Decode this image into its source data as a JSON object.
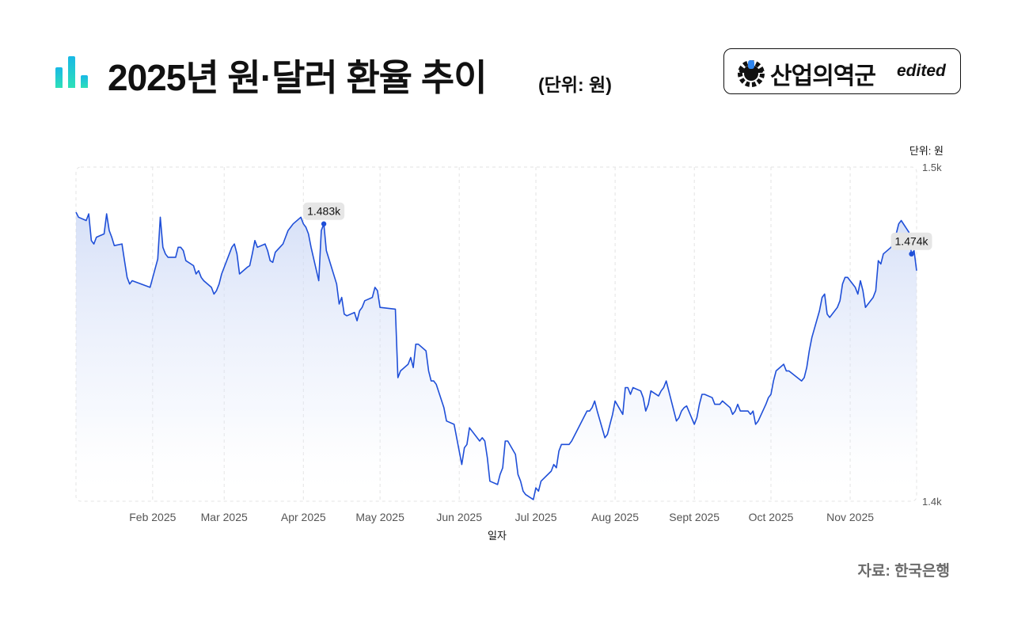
{
  "header": {
    "title": "2025년 원·달러 환율 추이",
    "subtitle": "(단위: 원)",
    "icon": "bar-chart-icon"
  },
  "logo": {
    "name": "산업의역군",
    "suffix": "edited",
    "icon": "hard-hat-gear-icon"
  },
  "source": "자료: 한국은행",
  "colors": {
    "line": "#1f4fd8",
    "area_top": "#c9d6f5",
    "grid": "#e3e3e3",
    "icon_teal": "#2ee0b8",
    "icon_blue": "#18b8e6"
  },
  "chart_data": {
    "type": "area",
    "xlabel": "일자",
    "ylabel": "단위: 원",
    "ylim": [
      1400,
      1500
    ],
    "y_ticks": [
      "1.4k",
      "1.5k"
    ],
    "x_ticks": [
      "Feb 2025",
      "Mar 2025",
      "Apr 2025",
      "May 2025",
      "Jun 2025",
      "Jul 2025",
      "Aug 2025",
      "Sept 2025",
      "Oct 2025",
      "Nov 2025"
    ],
    "x_tick_dates": [
      "2025-02-01",
      "2025-03-01",
      "2025-04-01",
      "2025-05-01",
      "2025-06-01",
      "2025-07-01",
      "2025-08-01",
      "2025-09-01",
      "2025-10-01",
      "2025-11-01"
    ],
    "x_range": [
      "2025-01-02",
      "2025-11-27"
    ],
    "grid": true,
    "annotations": [
      {
        "date": "2025-04-09",
        "value": 1483,
        "label": "1.483k"
      },
      {
        "date": "2025-11-25",
        "value": 1474,
        "label": "1.474k"
      }
    ],
    "series": [
      {
        "points": [
          [
            "2025-01-02",
            1486.5
          ],
          [
            "2025-01-03",
            1485
          ],
          [
            "2025-01-06",
            1484
          ],
          [
            "2025-01-07",
            1486
          ],
          [
            "2025-01-08",
            1478
          ],
          [
            "2025-01-09",
            1477
          ],
          [
            "2025-01-10",
            1479
          ],
          [
            "2025-01-13",
            1480
          ],
          [
            "2025-01-14",
            1486
          ],
          [
            "2025-01-15",
            1481
          ],
          [
            "2025-01-16",
            1479
          ],
          [
            "2025-01-17",
            1476.5
          ],
          [
            "2025-01-20",
            1477
          ],
          [
            "2025-01-21",
            1472
          ],
          [
            "2025-01-22",
            1467
          ],
          [
            "2025-01-23",
            1465
          ],
          [
            "2025-01-24",
            1466
          ],
          [
            "2025-01-31",
            1464
          ],
          [
            "2025-02-03",
            1472.5
          ],
          [
            "2025-02-04",
            1485
          ],
          [
            "2025-02-05",
            1476
          ],
          [
            "2025-02-06",
            1474
          ],
          [
            "2025-02-07",
            1473
          ],
          [
            "2025-02-10",
            1473
          ],
          [
            "2025-02-11",
            1476
          ],
          [
            "2025-02-12",
            1476
          ],
          [
            "2025-02-13",
            1475
          ],
          [
            "2025-02-14",
            1472
          ],
          [
            "2025-02-17",
            1470.5
          ],
          [
            "2025-02-18",
            1468
          ],
          [
            "2025-02-19",
            1469
          ],
          [
            "2025-02-20",
            1467
          ],
          [
            "2025-02-21",
            1466
          ],
          [
            "2025-02-24",
            1464
          ],
          [
            "2025-02-25",
            1462
          ],
          [
            "2025-02-26",
            1463
          ],
          [
            "2025-02-27",
            1465
          ],
          [
            "2025-02-28",
            1468
          ],
          [
            "2025-03-04",
            1476
          ],
          [
            "2025-03-05",
            1477
          ],
          [
            "2025-03-06",
            1474
          ],
          [
            "2025-03-07",
            1468
          ],
          [
            "2025-03-10",
            1470
          ],
          [
            "2025-03-11",
            1470.5
          ],
          [
            "2025-03-12",
            1474
          ],
          [
            "2025-03-13",
            1478
          ],
          [
            "2025-03-14",
            1476
          ],
          [
            "2025-03-17",
            1477
          ],
          [
            "2025-03-18",
            1475
          ],
          [
            "2025-03-19",
            1472
          ],
          [
            "2025-03-20",
            1471.5
          ],
          [
            "2025-03-21",
            1474.5
          ],
          [
            "2025-03-24",
            1477
          ],
          [
            "2025-03-25",
            1479
          ],
          [
            "2025-03-26",
            1481
          ],
          [
            "2025-03-27",
            1482
          ],
          [
            "2025-03-28",
            1483
          ],
          [
            "2025-03-31",
            1485
          ],
          [
            "2025-04-01",
            1483
          ],
          [
            "2025-04-02",
            1482
          ],
          [
            "2025-04-03",
            1480
          ],
          [
            "2025-04-04",
            1476
          ],
          [
            "2025-04-07",
            1466
          ],
          [
            "2025-04-08",
            1481
          ],
          [
            "2025-04-09",
            1483
          ],
          [
            "2025-04-10",
            1475
          ],
          [
            "2025-04-11",
            1472.5
          ],
          [
            "2025-04-14",
            1465
          ],
          [
            "2025-04-15",
            1459
          ],
          [
            "2025-04-16",
            1461
          ],
          [
            "2025-04-17",
            1456
          ],
          [
            "2025-04-18",
            1455.5
          ],
          [
            "2025-04-21",
            1456.5
          ],
          [
            "2025-04-22",
            1454
          ],
          [
            "2025-04-23",
            1457
          ],
          [
            "2025-04-24",
            1458
          ],
          [
            "2025-04-25",
            1460
          ],
          [
            "2025-04-28",
            1461
          ],
          [
            "2025-04-29",
            1464
          ],
          [
            "2025-04-30",
            1463
          ],
          [
            "2025-05-01",
            1458
          ],
          [
            "2025-05-07",
            1457.5
          ],
          [
            "2025-05-08",
            1437
          ],
          [
            "2025-05-09",
            1439
          ],
          [
            "2025-05-12",
            1441
          ],
          [
            "2025-05-13",
            1443
          ],
          [
            "2025-05-14",
            1440
          ],
          [
            "2025-05-15",
            1447
          ],
          [
            "2025-05-16",
            1447
          ],
          [
            "2025-05-19",
            1445
          ],
          [
            "2025-05-20",
            1439
          ],
          [
            "2025-05-21",
            1436
          ],
          [
            "2025-05-22",
            1436
          ],
          [
            "2025-05-23",
            1435
          ],
          [
            "2025-05-26",
            1428
          ],
          [
            "2025-05-27",
            1424
          ],
          [
            "2025-05-30",
            1423
          ],
          [
            "2025-06-02",
            1411
          ],
          [
            "2025-06-03",
            1416
          ],
          [
            "2025-06-04",
            1417
          ],
          [
            "2025-06-05",
            1422
          ],
          [
            "2025-06-09",
            1418
          ],
          [
            "2025-06-10",
            1419
          ],
          [
            "2025-06-11",
            1418
          ],
          [
            "2025-06-12",
            1413
          ],
          [
            "2025-06-13",
            1406
          ],
          [
            "2025-06-16",
            1405
          ],
          [
            "2025-06-17",
            1408
          ],
          [
            "2025-06-18",
            1410
          ],
          [
            "2025-06-19",
            1418
          ],
          [
            "2025-06-20",
            1418
          ],
          [
            "2025-06-23",
            1414
          ],
          [
            "2025-06-24",
            1408
          ],
          [
            "2025-06-25",
            1406
          ],
          [
            "2025-06-26",
            1403
          ],
          [
            "2025-06-27",
            1402
          ],
          [
            "2025-06-30",
            1400.5
          ],
          [
            "2025-07-01",
            1404
          ],
          [
            "2025-07-02",
            1403
          ],
          [
            "2025-07-03",
            1406
          ],
          [
            "2025-07-07",
            1409
          ],
          [
            "2025-07-08",
            1411
          ],
          [
            "2025-07-09",
            1410
          ],
          [
            "2025-07-10",
            1415
          ],
          [
            "2025-07-11",
            1417
          ],
          [
            "2025-07-14",
            1417
          ],
          [
            "2025-07-15",
            1418
          ],
          [
            "2025-07-17",
            1421
          ],
          [
            "2025-07-21",
            1427
          ],
          [
            "2025-07-22",
            1427
          ],
          [
            "2025-07-23",
            1428
          ],
          [
            "2025-07-24",
            1430
          ],
          [
            "2025-07-25",
            1427
          ],
          [
            "2025-07-28",
            1419
          ],
          [
            "2025-07-29",
            1420
          ],
          [
            "2025-07-30",
            1423
          ],
          [
            "2025-07-31",
            1426
          ],
          [
            "2025-08-01",
            1430
          ],
          [
            "2025-08-04",
            1426
          ],
          [
            "2025-08-05",
            1434
          ],
          [
            "2025-08-06",
            1434
          ],
          [
            "2025-08-07",
            1432
          ],
          [
            "2025-08-08",
            1434
          ],
          [
            "2025-08-11",
            1433
          ],
          [
            "2025-08-12",
            1431
          ],
          [
            "2025-08-13",
            1427
          ],
          [
            "2025-08-14",
            1429
          ],
          [
            "2025-08-15",
            1433
          ],
          [
            "2025-08-18",
            1431.5
          ],
          [
            "2025-08-19",
            1433
          ],
          [
            "2025-08-20",
            1434
          ],
          [
            "2025-08-21",
            1436
          ],
          [
            "2025-08-22",
            1433
          ],
          [
            "2025-08-25",
            1424
          ],
          [
            "2025-08-26",
            1425
          ],
          [
            "2025-08-27",
            1427
          ],
          [
            "2025-08-28",
            1428
          ],
          [
            "2025-08-29",
            1428.5
          ],
          [
            "2025-09-01",
            1423
          ],
          [
            "2025-09-02",
            1425
          ],
          [
            "2025-09-03",
            1429
          ],
          [
            "2025-09-04",
            1432
          ],
          [
            "2025-09-05",
            1432
          ],
          [
            "2025-09-08",
            1431
          ],
          [
            "2025-09-09",
            1429
          ],
          [
            "2025-09-10",
            1429
          ],
          [
            "2025-09-11",
            1429
          ],
          [
            "2025-09-12",
            1430
          ],
          [
            "2025-09-15",
            1428
          ],
          [
            "2025-09-16",
            1426
          ],
          [
            "2025-09-17",
            1427
          ],
          [
            "2025-09-18",
            1429
          ],
          [
            "2025-09-19",
            1427
          ],
          [
            "2025-09-22",
            1427
          ],
          [
            "2025-09-23",
            1426
          ],
          [
            "2025-09-24",
            1427
          ],
          [
            "2025-09-25",
            1423
          ],
          [
            "2025-09-26",
            1424
          ],
          [
            "2025-09-29",
            1429
          ],
          [
            "2025-09-30",
            1431
          ],
          [
            "2025-10-01",
            1432
          ],
          [
            "2025-10-02",
            1436
          ],
          [
            "2025-10-03",
            1439
          ],
          [
            "2025-10-06",
            1441
          ],
          [
            "2025-10-07",
            1439
          ],
          [
            "2025-10-08",
            1439
          ],
          [
            "2025-10-13",
            1436
          ],
          [
            "2025-10-14",
            1437
          ],
          [
            "2025-10-15",
            1440
          ],
          [
            "2025-10-16",
            1445
          ],
          [
            "2025-10-17",
            1449
          ],
          [
            "2025-10-20",
            1457
          ],
          [
            "2025-10-21",
            1461
          ],
          [
            "2025-10-22",
            1462
          ],
          [
            "2025-10-23",
            1456
          ],
          [
            "2025-10-24",
            1455
          ],
          [
            "2025-10-27",
            1458
          ],
          [
            "2025-10-28",
            1460
          ],
          [
            "2025-10-29",
            1465
          ],
          [
            "2025-10-30",
            1467
          ],
          [
            "2025-10-31",
            1467
          ],
          [
            "2025-11-03",
            1464
          ],
          [
            "2025-11-04",
            1462
          ],
          [
            "2025-11-05",
            1466
          ],
          [
            "2025-11-06",
            1463
          ],
          [
            "2025-11-07",
            1458
          ],
          [
            "2025-11-10",
            1461
          ],
          [
            "2025-11-11",
            1463
          ],
          [
            "2025-11-12",
            1472
          ],
          [
            "2025-11-13",
            1471
          ],
          [
            "2025-11-14",
            1474
          ],
          [
            "2025-11-17",
            1476
          ],
          [
            "2025-11-18",
            1478
          ],
          [
            "2025-11-19",
            1480
          ],
          [
            "2025-11-20",
            1483
          ],
          [
            "2025-11-21",
            1484
          ],
          [
            "2025-11-24",
            1480.5
          ],
          [
            "2025-11-25",
            1474
          ],
          [
            "2025-11-26",
            1475
          ],
          [
            "2025-11-27",
            1469
          ]
        ]
      }
    ]
  }
}
